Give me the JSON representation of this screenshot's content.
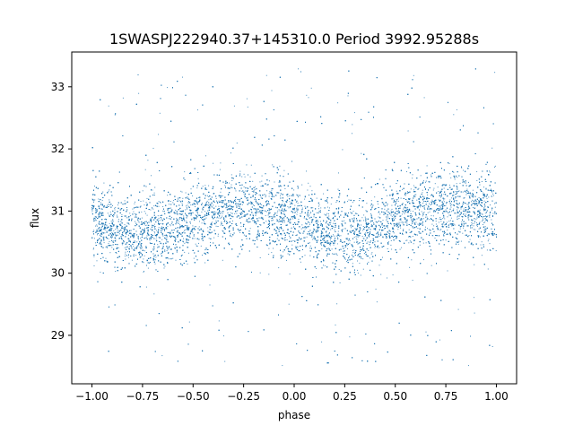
{
  "chart_data": {
    "type": "scatter",
    "title": "1SWASPJ222940.37+145310.0 Period 3992.95288s",
    "xlabel": "phase",
    "ylabel": "flux",
    "xlim": [
      -1.1,
      1.1
    ],
    "ylim": [
      28.22,
      33.56
    ],
    "xticks": [
      -1.0,
      -0.75,
      -0.5,
      -0.25,
      0.0,
      0.25,
      0.5,
      0.75,
      1.0
    ],
    "xtick_labels": [
      "−1.00",
      "−0.75",
      "−0.50",
      "−0.25",
      "0.00",
      "0.25",
      "0.50",
      "0.75",
      "1.00"
    ],
    "yticks": [
      29,
      30,
      31,
      32,
      33
    ],
    "ytick_labels": [
      "29",
      "30",
      "31",
      "32",
      "33"
    ],
    "grid": false,
    "legend": "none",
    "marker_color": "#1f77b4",
    "phase_range": [
      -1.0,
      1.0
    ],
    "flux_range": [
      28.5,
      33.3
    ],
    "binned_mean": {
      "phase": [
        -1.0,
        -0.875,
        -0.75,
        -0.625,
        -0.5,
        -0.375,
        -0.25,
        -0.125,
        0.0,
        0.125,
        0.25,
        0.375,
        0.5,
        0.625,
        0.75,
        0.875,
        1.0
      ],
      "flux": [
        30.82,
        30.7,
        30.65,
        30.7,
        30.85,
        30.98,
        31.05,
        31.0,
        30.85,
        30.68,
        30.62,
        30.72,
        30.88,
        31.0,
        31.05,
        31.0,
        30.88
      ]
    },
    "typical_scatter": 0.3
  }
}
